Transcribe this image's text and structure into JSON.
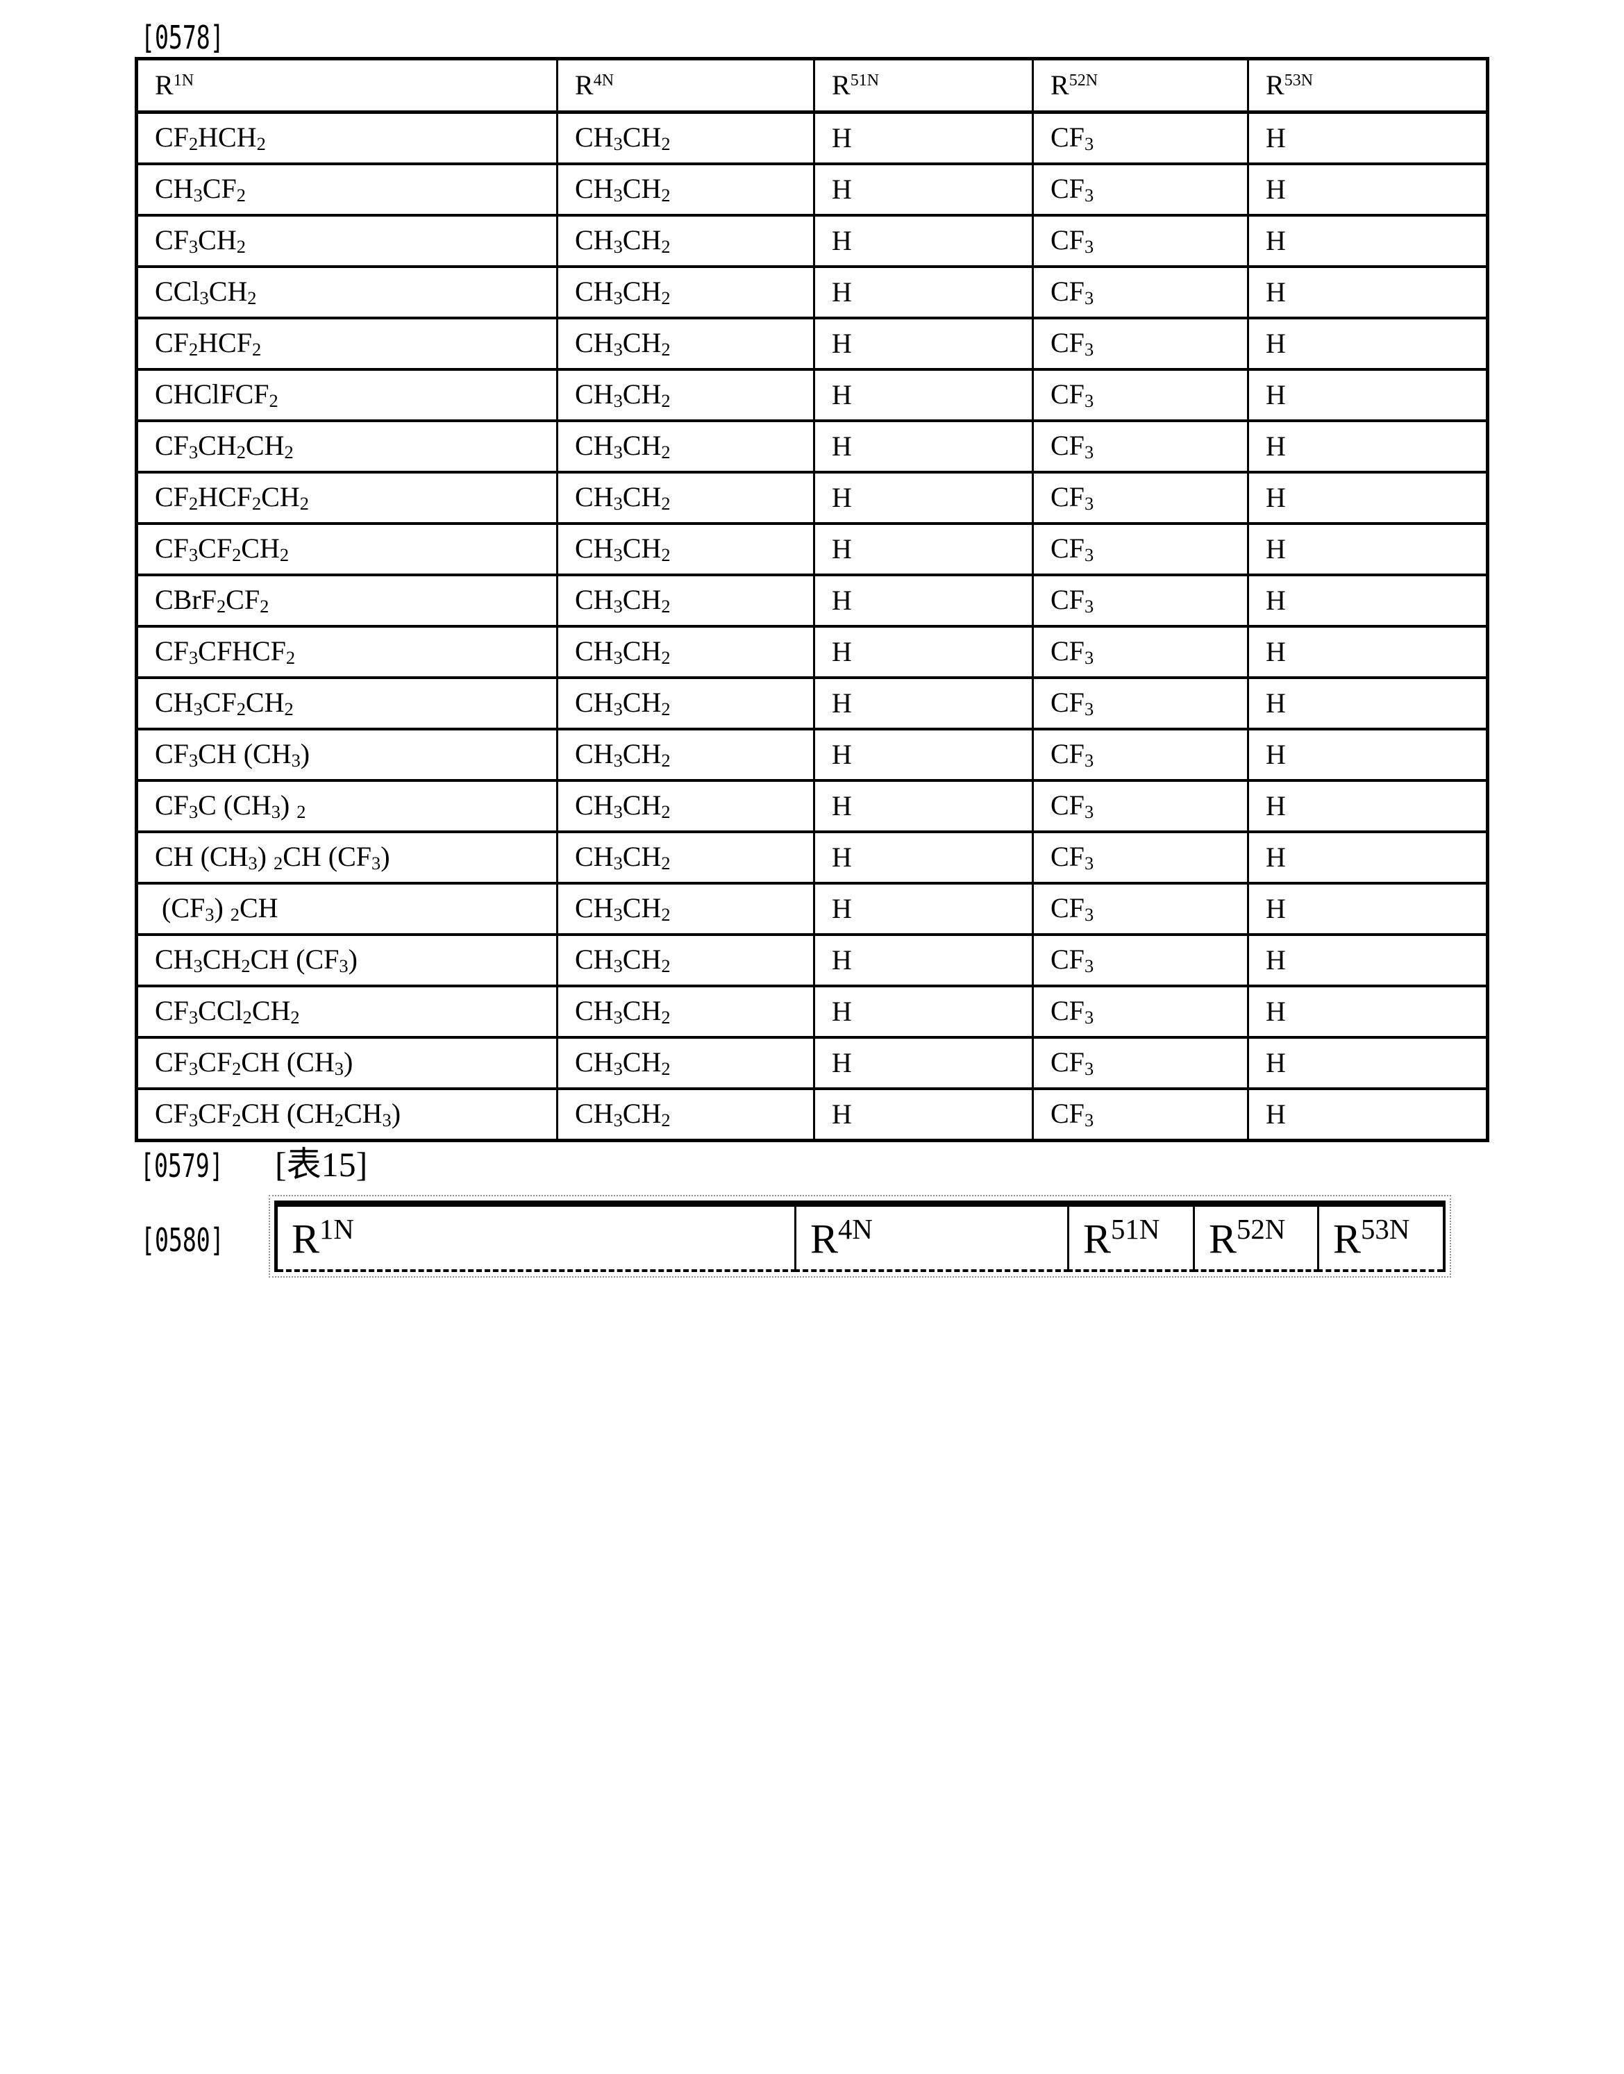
{
  "paragraphs": {
    "p0578": "[0578]",
    "p0579": "[0579]",
    "p0580": "[0580]"
  },
  "captions": {
    "table15": "[表15]"
  },
  "table_0578": {
    "headers": [
      "R^{1N}",
      "R^{4N}",
      "R^{51N}",
      "R^{52N}",
      "R^{53N}"
    ],
    "rows": [
      {
        "r1n": "CF_{2}HCH_{2}",
        "r4n": "CH_{3}CH_{2}",
        "r51n": "H",
        "r52n": "CF_{3}",
        "r53n": "H"
      },
      {
        "r1n": "CH_{3}CF_{2}",
        "r4n": "CH_{3}CH_{2}",
        "r51n": "H",
        "r52n": "CF_{3}",
        "r53n": "H"
      },
      {
        "r1n": "CF_{3}CH_{2}",
        "r4n": "CH_{3}CH_{2}",
        "r51n": "H",
        "r52n": "CF_{3}",
        "r53n": "H"
      },
      {
        "r1n": "CCl_{3}CH_{2}",
        "r4n": "CH_{3}CH_{2}",
        "r51n": "H",
        "r52n": "CF_{3}",
        "r53n": "H"
      },
      {
        "r1n": "CF_{2}HCF_{2}",
        "r4n": "CH_{3}CH_{2}",
        "r51n": "H",
        "r52n": "CF_{3}",
        "r53n": "H"
      },
      {
        "r1n": "CHClFCF_{2}",
        "r4n": "CH_{3}CH_{2}",
        "r51n": "H",
        "r52n": "CF_{3}",
        "r53n": "H"
      },
      {
        "r1n": "CF_{3}CH_{2}CH_{2}",
        "r4n": "CH_{3}CH_{2}",
        "r51n": "H",
        "r52n": "CF_{3}",
        "r53n": "H"
      },
      {
        "r1n": "CF_{2}HCF_{2}CH_{2}",
        "r4n": "CH_{3}CH_{2}",
        "r51n": "H",
        "r52n": "CF_{3}",
        "r53n": "H"
      },
      {
        "r1n": "CF_{3}CF_{2}CH_{2}",
        "r4n": "CH_{3}CH_{2}",
        "r51n": "H",
        "r52n": "CF_{3}",
        "r53n": "H"
      },
      {
        "r1n": "CBrF_{2}CF_{2}",
        "r4n": "CH_{3}CH_{2}",
        "r51n": "H",
        "r52n": "CF_{3}",
        "r53n": "H"
      },
      {
        "r1n": "CF_{3}CFHCF_{2}",
        "r4n": "CH_{3}CH_{2}",
        "r51n": "H",
        "r52n": "CF_{3}",
        "r53n": "H"
      },
      {
        "r1n": "CH_{3}CF_{2}CH_{2}",
        "r4n": "CH_{3}CH_{2}",
        "r51n": "H",
        "r52n": "CF_{3}",
        "r53n": "H"
      },
      {
        "r1n": "CF_{3}CH (CH_{3})",
        "r4n": "CH_{3}CH_{2}",
        "r51n": "H",
        "r52n": "CF_{3}",
        "r53n": "H"
      },
      {
        "r1n": "CF_{3}C (CH_{3}) _{2}",
        "r4n": "CH_{3}CH_{2}",
        "r51n": "H",
        "r52n": "CF_{3}",
        "r53n": "H"
      },
      {
        "r1n": "CH (CH_{3}) _{2}CH (CF_{3})",
        "r4n": "CH_{3}CH_{2}",
        "r51n": "H",
        "r52n": "CF_{3}",
        "r53n": "H"
      },
      {
        "r1n": " (CF_{3}) _{2}CH",
        "r4n": "CH_{3}CH_{2}",
        "r51n": "H",
        "r52n": "CF_{3}",
        "r53n": "H"
      },
      {
        "r1n": "CH_{3}CH_{2}CH (CF_{3})",
        "r4n": "CH_{3}CH_{2}",
        "r51n": "H",
        "r52n": "CF_{3}",
        "r53n": "H"
      },
      {
        "r1n": "CF_{3}CCl_{2}CH_{2}",
        "r4n": "CH_{3}CH_{2}",
        "r51n": "H",
        "r52n": "CF_{3}",
        "r53n": "H"
      },
      {
        "r1n": "CF_{3}CF_{2}CH (CH_{3})",
        "r4n": "CH_{3}CH_{2}",
        "r51n": "H",
        "r52n": "CF_{3}",
        "r53n": "H"
      },
      {
        "r1n": "CF_{3}CF_{2}CH (CH_{2}CH_{3})",
        "r4n": "CH_{3}CH_{2}",
        "r51n": "H",
        "r52n": "CF_{3}",
        "r53n": "H"
      }
    ]
  },
  "table_0580": {
    "headers": [
      "R^{1N}",
      "R^{4N}",
      "R^{51N}",
      "R^{52N}",
      "R^{53N}"
    ]
  }
}
